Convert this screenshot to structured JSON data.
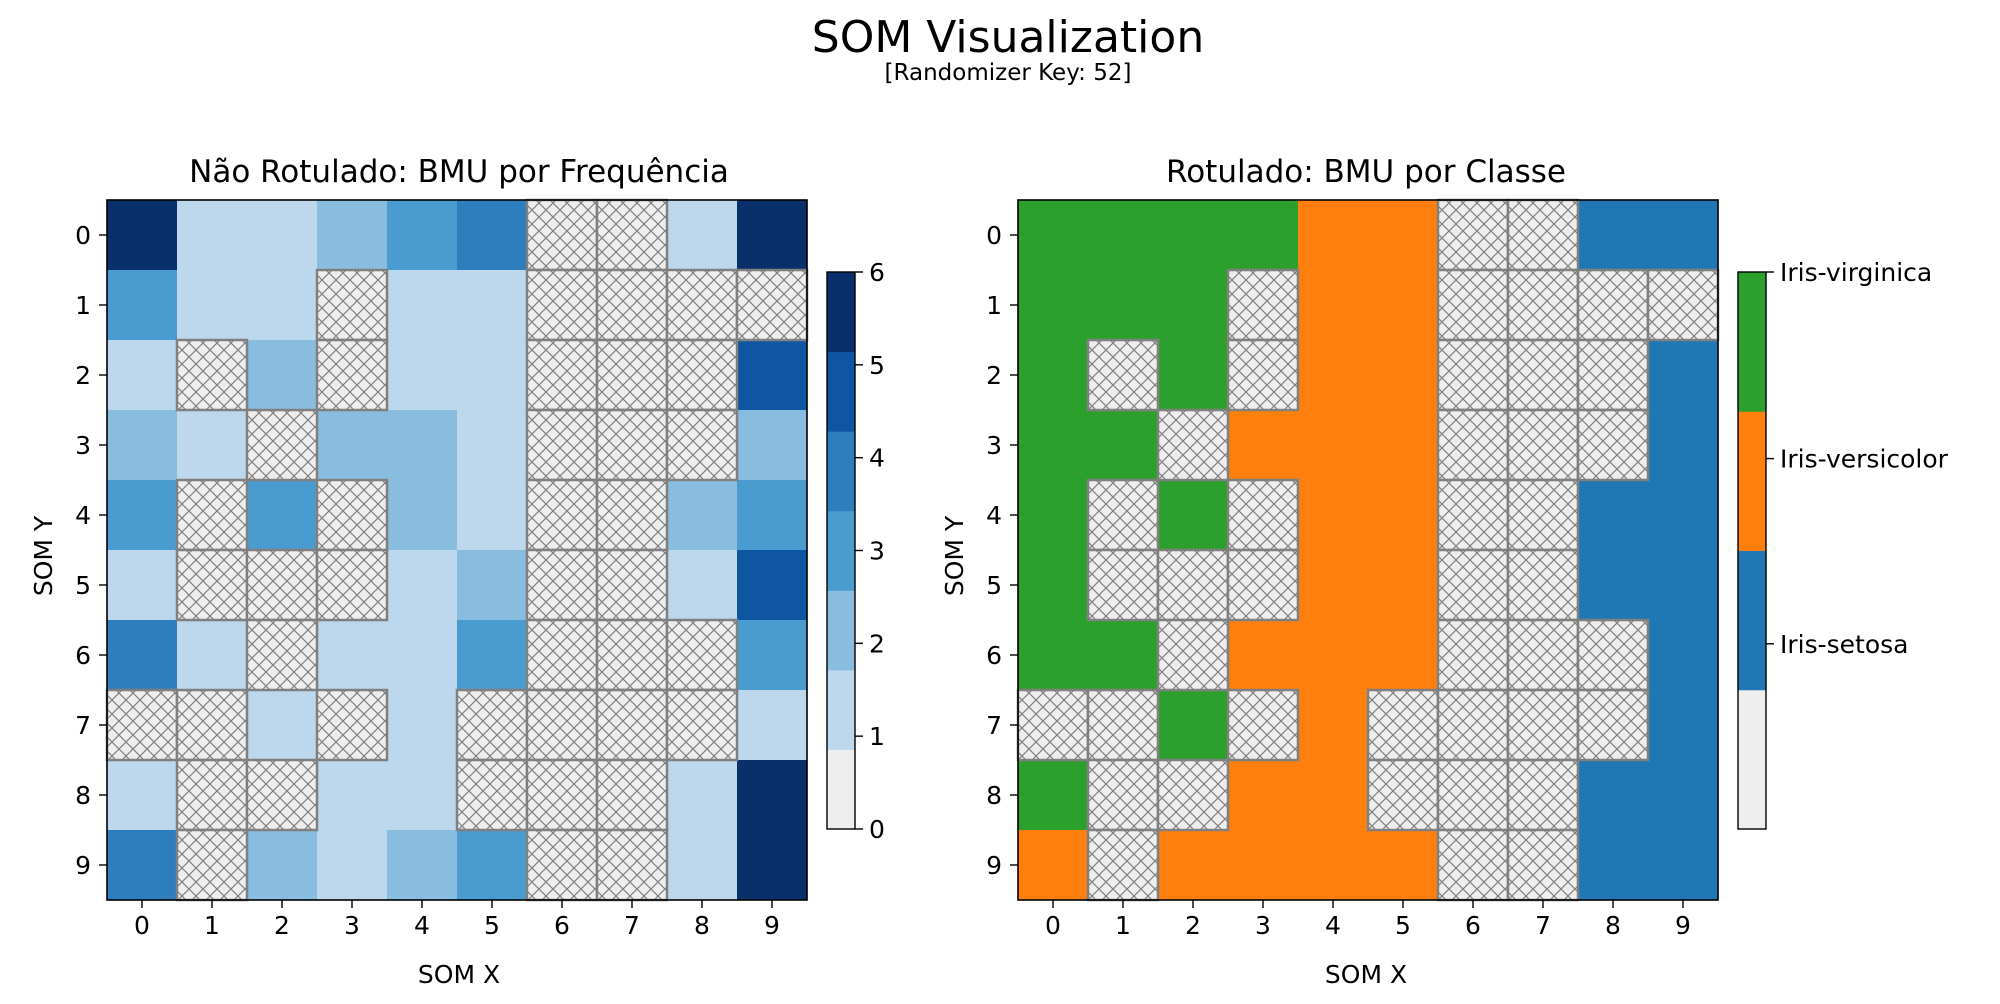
{
  "figure": {
    "title": "SOM Visualization",
    "subtitle": "[Randomizer Key: 52]"
  },
  "colors": {
    "empty": "#eeeeee",
    "hatch": "#808080",
    "cell_border": "#808080",
    "blues": [
      "#eeeeee",
      "#bdd7ec",
      "#88bde0",
      "#4a9bd0",
      "#2e7ebe",
      "#0f56a2",
      "#09306b"
    ]
  },
  "chart_data": [
    {
      "type": "heatmap",
      "title": "Não Rotulado: BMU por Frequência",
      "xlabel": "SOM X",
      "ylabel": "SOM Y",
      "x_ticks": [
        "0",
        "1",
        "2",
        "3",
        "4",
        "5",
        "6",
        "7",
        "8",
        "9"
      ],
      "y_ticks": [
        "0",
        "1",
        "2",
        "3",
        "4",
        "5",
        "6",
        "7",
        "8",
        "9"
      ],
      "empty_value": 0,
      "empty_style": "hatched",
      "colormap": "Blues",
      "colorbar": {
        "range": [
          0,
          6
        ],
        "ticks": [
          "0",
          "1",
          "2",
          "3",
          "4",
          "5",
          "6"
        ]
      },
      "grid": [
        [
          6,
          1,
          1,
          2,
          3,
          4,
          0,
          0,
          1,
          6
        ],
        [
          3,
          1,
          1,
          0,
          1,
          1,
          0,
          0,
          0,
          0
        ],
        [
          1,
          0,
          2,
          0,
          1,
          1,
          0,
          0,
          0,
          5
        ],
        [
          2,
          1,
          0,
          2,
          2,
          1,
          0,
          0,
          0,
          2
        ],
        [
          3,
          0,
          3,
          0,
          2,
          1,
          0,
          0,
          2,
          3
        ],
        [
          1,
          0,
          0,
          0,
          1,
          2,
          0,
          0,
          1,
          5
        ],
        [
          4,
          1,
          0,
          1,
          1,
          3,
          0,
          0,
          0,
          3
        ],
        [
          0,
          0,
          1,
          0,
          1,
          0,
          0,
          0,
          0,
          1
        ],
        [
          1,
          0,
          0,
          1,
          1,
          0,
          0,
          0,
          1,
          6
        ],
        [
          4,
          0,
          2,
          1,
          2,
          3,
          0,
          0,
          1,
          6
        ]
      ]
    },
    {
      "type": "heatmap",
      "title": "Rotulado: BMU por Classe",
      "xlabel": "SOM X",
      "ylabel": "SOM Y",
      "x_ticks": [
        "0",
        "1",
        "2",
        "3",
        "4",
        "5",
        "6",
        "7",
        "8",
        "9"
      ],
      "y_ticks": [
        "0",
        "1",
        "2",
        "3",
        "4",
        "5",
        "6",
        "7",
        "8",
        "9"
      ],
      "empty_value": 0,
      "empty_style": "hatched",
      "classes": [
        {
          "value": 0,
          "name": "",
          "color": "#eeeeee"
        },
        {
          "value": 1,
          "name": "Iris-setosa",
          "color": "#1f77b4"
        },
        {
          "value": 2,
          "name": "Iris-versicolor",
          "color": "#ff7f0e"
        },
        {
          "value": 3,
          "name": "Iris-virginica",
          "color": "#2ca02c"
        }
      ],
      "grid": [
        [
          3,
          3,
          3,
          3,
          2,
          2,
          0,
          0,
          1,
          1
        ],
        [
          3,
          3,
          3,
          0,
          2,
          2,
          0,
          0,
          0,
          0
        ],
        [
          3,
          0,
          3,
          0,
          2,
          2,
          0,
          0,
          0,
          1
        ],
        [
          3,
          3,
          0,
          2,
          2,
          2,
          0,
          0,
          0,
          1
        ],
        [
          3,
          0,
          3,
          0,
          2,
          2,
          0,
          0,
          1,
          1
        ],
        [
          3,
          0,
          0,
          0,
          2,
          2,
          0,
          0,
          1,
          1
        ],
        [
          3,
          3,
          0,
          2,
          2,
          2,
          0,
          0,
          0,
          1
        ],
        [
          0,
          0,
          3,
          0,
          2,
          0,
          0,
          0,
          0,
          1
        ],
        [
          3,
          0,
          0,
          2,
          2,
          0,
          0,
          0,
          1,
          1
        ],
        [
          2,
          0,
          2,
          2,
          2,
          2,
          0,
          0,
          1,
          1
        ]
      ]
    }
  ]
}
